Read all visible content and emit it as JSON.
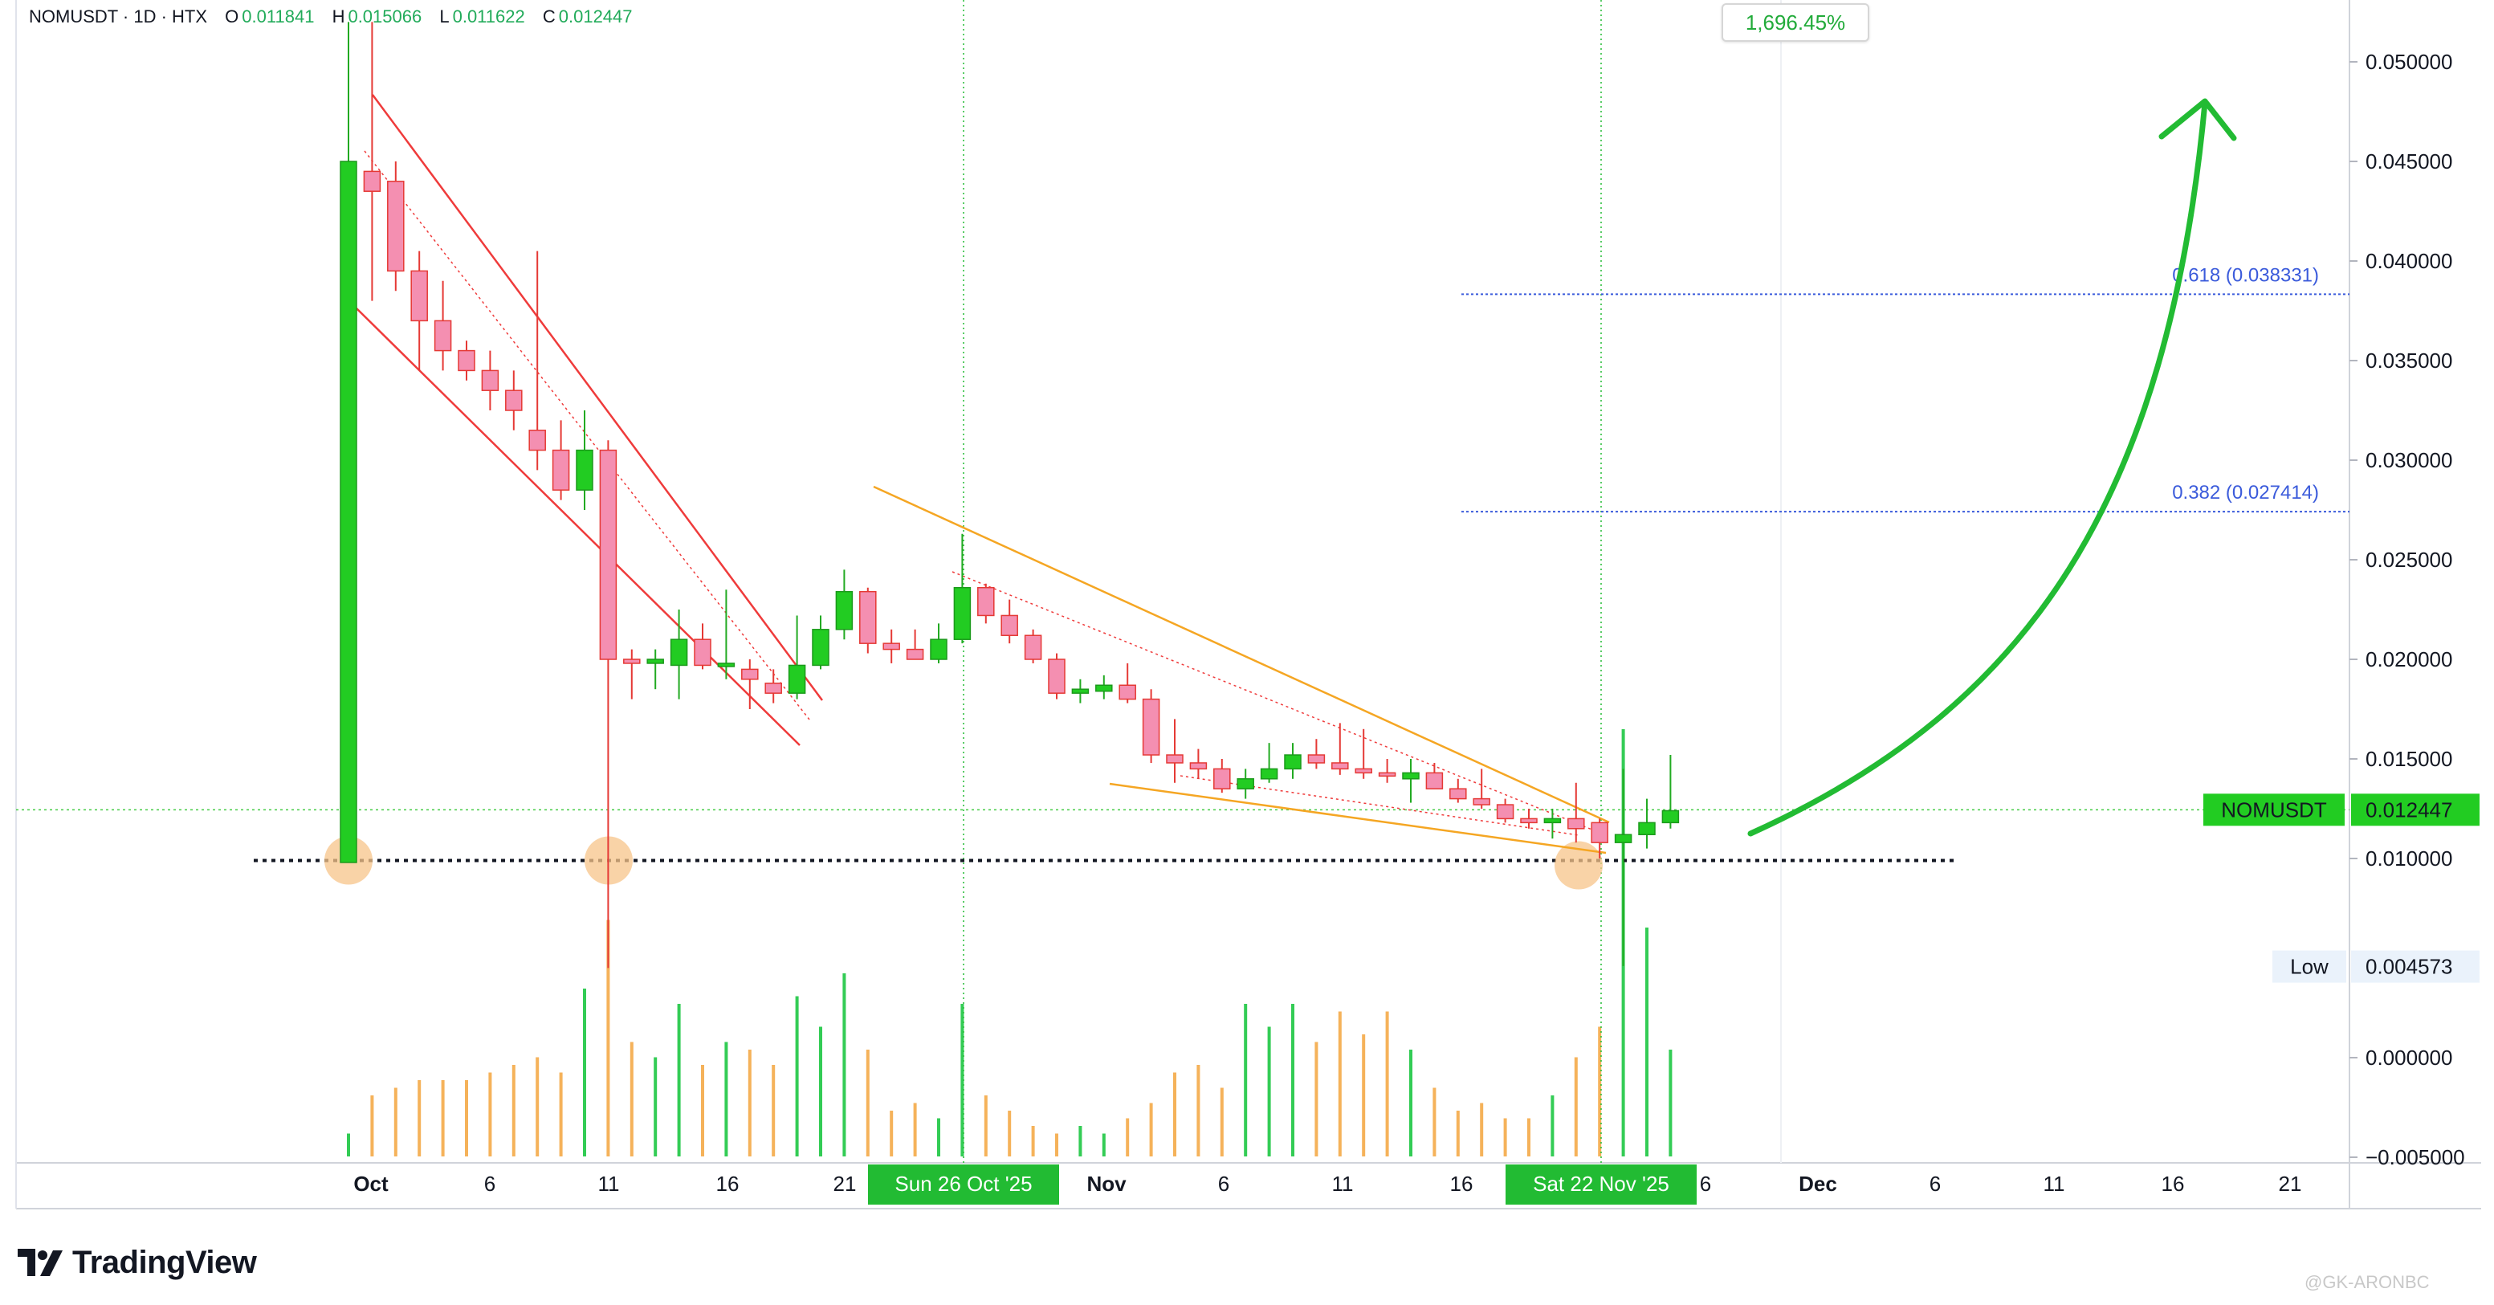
{
  "header": {
    "symbol_line": "NOMUSDT · 1D · HTX",
    "open_label": "O",
    "open": "0.011841",
    "high_label": "H",
    "high": "0.015066",
    "low_label": "L",
    "low": "0.011622",
    "close_label": "C",
    "close": "0.012447"
  },
  "badge": {
    "percent": "1,696.45%"
  },
  "branding": {
    "logo_text": "TradingView",
    "watermark": "@GK-ARONBC"
  },
  "colors": {
    "up": "#22cc22",
    "down": "#f06292",
    "down_fill": "#f48fb1",
    "channel_red": "#ef3b3b",
    "wedge_orange": "#f5a623",
    "fib_blue": "#3b5bdb",
    "arrow_green": "#22bb33",
    "highlight": "#f7c48a"
  },
  "chart_data": {
    "type": "candlestick",
    "symbol": "NOMUSDT",
    "interval": "1D",
    "exchange": "HTX",
    "y_ticks": [
      "0.050000",
      "0.045000",
      "0.040000",
      "0.035000",
      "0.030000",
      "0.025000",
      "0.020000",
      "0.015000",
      "0.010000",
      "0.000000",
      "−0.005000"
    ],
    "x_ticks": [
      "Oct",
      "6",
      "11",
      "16",
      "21",
      "Nov",
      "6",
      "11",
      "16",
      "6",
      "Dec",
      "6",
      "11",
      "16",
      "21"
    ],
    "x_highlight_labels": [
      "Sun 26 Oct '25",
      "Sat 22 Nov '25"
    ],
    "price_label": {
      "name": "NOMUSDT",
      "value": "0.012447"
    },
    "low_label": {
      "name": "Low",
      "value": "0.004573"
    },
    "fib_levels": [
      {
        "label": "0.618 (0.038331)",
        "value": 0.038331
      },
      {
        "label": "0.382 (0.027414)",
        "value": 0.027414
      }
    ],
    "support_level": 0.0099,
    "candles": [
      {
        "o": 0.0098,
        "h": 0.052,
        "l": 0.0098,
        "c": 0.045,
        "v": 0.3
      },
      {
        "o": 0.0445,
        "h": 0.052,
        "l": 0.038,
        "c": 0.0435,
        "v": 0.8
      },
      {
        "o": 0.044,
        "h": 0.045,
        "l": 0.0385,
        "c": 0.0395,
        "v": 0.9
      },
      {
        "o": 0.0395,
        "h": 0.0405,
        "l": 0.0345,
        "c": 0.037,
        "v": 1.0
      },
      {
        "o": 0.037,
        "h": 0.039,
        "l": 0.0345,
        "c": 0.0355,
        "v": 1.0
      },
      {
        "o": 0.0355,
        "h": 0.036,
        "l": 0.034,
        "c": 0.0345,
        "v": 1.0
      },
      {
        "o": 0.0345,
        "h": 0.0355,
        "l": 0.0325,
        "c": 0.0335,
        "v": 1.1
      },
      {
        "o": 0.0335,
        "h": 0.0345,
        "l": 0.0315,
        "c": 0.0325,
        "v": 1.2
      },
      {
        "o": 0.0315,
        "h": 0.0405,
        "l": 0.0295,
        "c": 0.0305,
        "v": 1.3
      },
      {
        "o": 0.0305,
        "h": 0.032,
        "l": 0.028,
        "c": 0.0285,
        "v": 1.1
      },
      {
        "o": 0.0285,
        "h": 0.0325,
        "l": 0.0275,
        "c": 0.0305,
        "v": 2.2
      },
      {
        "o": 0.0305,
        "h": 0.031,
        "l": 0.0045,
        "c": 0.02,
        "v": 3.1
      },
      {
        "o": 0.02,
        "h": 0.0205,
        "l": 0.018,
        "c": 0.0198,
        "v": 1.5
      },
      {
        "o": 0.0198,
        "h": 0.0205,
        "l": 0.0185,
        "c": 0.02,
        "v": 1.3
      },
      {
        "o": 0.0197,
        "h": 0.0225,
        "l": 0.018,
        "c": 0.021,
        "v": 2.0
      },
      {
        "o": 0.021,
        "h": 0.0218,
        "l": 0.0195,
        "c": 0.0197,
        "v": 1.2
      },
      {
        "o": 0.0197,
        "h": 0.0235,
        "l": 0.019,
        "c": 0.0198,
        "v": 1.5
      },
      {
        "o": 0.0195,
        "h": 0.02,
        "l": 0.0175,
        "c": 0.019,
        "v": 1.4
      },
      {
        "o": 0.0188,
        "h": 0.0195,
        "l": 0.0178,
        "c": 0.0183,
        "v": 1.2
      },
      {
        "o": 0.0183,
        "h": 0.0222,
        "l": 0.018,
        "c": 0.0197,
        "v": 2.1
      },
      {
        "o": 0.0197,
        "h": 0.0222,
        "l": 0.0195,
        "c": 0.0215,
        "v": 1.7
      },
      {
        "o": 0.0215,
        "h": 0.0245,
        "l": 0.021,
        "c": 0.0234,
        "v": 2.4
      },
      {
        "o": 0.0234,
        "h": 0.0236,
        "l": 0.0203,
        "c": 0.0208,
        "v": 1.4
      },
      {
        "o": 0.0208,
        "h": 0.0215,
        "l": 0.0198,
        "c": 0.0205,
        "v": 0.6
      },
      {
        "o": 0.0205,
        "h": 0.0215,
        "l": 0.02,
        "c": 0.02,
        "v": 0.7
      },
      {
        "o": 0.02,
        "h": 0.0218,
        "l": 0.0198,
        "c": 0.021,
        "v": 0.5
      },
      {
        "o": 0.021,
        "h": 0.0263,
        "l": 0.0208,
        "c": 0.0236,
        "v": 2.0
      },
      {
        "o": 0.0236,
        "h": 0.0238,
        "l": 0.0218,
        "c": 0.0222,
        "v": 0.8
      },
      {
        "o": 0.0222,
        "h": 0.023,
        "l": 0.0208,
        "c": 0.0212,
        "v": 0.6
      },
      {
        "o": 0.0212,
        "h": 0.0215,
        "l": 0.0198,
        "c": 0.02,
        "v": 0.4
      },
      {
        "o": 0.02,
        "h": 0.0203,
        "l": 0.018,
        "c": 0.0183,
        "v": 0.3
      },
      {
        "o": 0.0183,
        "h": 0.019,
        "l": 0.0178,
        "c": 0.0185,
        "v": 0.4
      },
      {
        "o": 0.0184,
        "h": 0.0192,
        "l": 0.018,
        "c": 0.0187,
        "v": 0.3
      },
      {
        "o": 0.0187,
        "h": 0.0198,
        "l": 0.0178,
        "c": 0.018,
        "v": 0.5
      },
      {
        "o": 0.018,
        "h": 0.0185,
        "l": 0.0148,
        "c": 0.0152,
        "v": 0.7
      },
      {
        "o": 0.0152,
        "h": 0.017,
        "l": 0.0138,
        "c": 0.0148,
        "v": 1.1
      },
      {
        "o": 0.0148,
        "h": 0.0155,
        "l": 0.014,
        "c": 0.0145,
        "v": 1.2
      },
      {
        "o": 0.0145,
        "h": 0.015,
        "l": 0.0133,
        "c": 0.0135,
        "v": 0.9
      },
      {
        "o": 0.0135,
        "h": 0.0145,
        "l": 0.013,
        "c": 0.014,
        "v": 2.0
      },
      {
        "o": 0.014,
        "h": 0.0158,
        "l": 0.0138,
        "c": 0.0145,
        "v": 1.7
      },
      {
        "o": 0.0145,
        "h": 0.0158,
        "l": 0.014,
        "c": 0.0152,
        "v": 2.0
      },
      {
        "o": 0.0152,
        "h": 0.016,
        "l": 0.0145,
        "c": 0.0148,
        "v": 1.5
      },
      {
        "o": 0.0148,
        "h": 0.0168,
        "l": 0.0142,
        "c": 0.0145,
        "v": 1.9
      },
      {
        "o": 0.0145,
        "h": 0.0165,
        "l": 0.014,
        "c": 0.0143,
        "v": 1.6
      },
      {
        "o": 0.0143,
        "h": 0.015,
        "l": 0.0138,
        "c": 0.0142,
        "v": 1.9
      },
      {
        "o": 0.014,
        "h": 0.015,
        "l": 0.0128,
        "c": 0.0143,
        "v": 1.4
      },
      {
        "o": 0.0143,
        "h": 0.0148,
        "l": 0.0135,
        "c": 0.0135,
        "v": 0.9
      },
      {
        "o": 0.0135,
        "h": 0.014,
        "l": 0.0128,
        "c": 0.013,
        "v": 0.6
      },
      {
        "o": 0.013,
        "h": 0.0145,
        "l": 0.0125,
        "c": 0.0127,
        "v": 0.7
      },
      {
        "o": 0.0127,
        "h": 0.013,
        "l": 0.0118,
        "c": 0.012,
        "v": 0.5
      },
      {
        "o": 0.012,
        "h": 0.0125,
        "l": 0.0115,
        "c": 0.0118,
        "v": 0.5
      },
      {
        "o": 0.0118,
        "h": 0.0125,
        "l": 0.011,
        "c": 0.012,
        "v": 0.8
      },
      {
        "o": 0.012,
        "h": 0.0138,
        "l": 0.0108,
        "c": 0.0115,
        "v": 1.3
      },
      {
        "o": 0.0118,
        "h": 0.012,
        "l": 0.01,
        "c": 0.0108,
        "v": 1.7
      },
      {
        "o": 0.0108,
        "h": 0.0145,
        "l": 0.0046,
        "c": 0.0112,
        "v": 5.6
      },
      {
        "o": 0.0112,
        "h": 0.013,
        "l": 0.0105,
        "c": 0.0118,
        "v": 3.0
      },
      {
        "o": 0.0118,
        "h": 0.0152,
        "l": 0.0115,
        "c": 0.0124,
        "v": 1.4
      }
    ]
  }
}
